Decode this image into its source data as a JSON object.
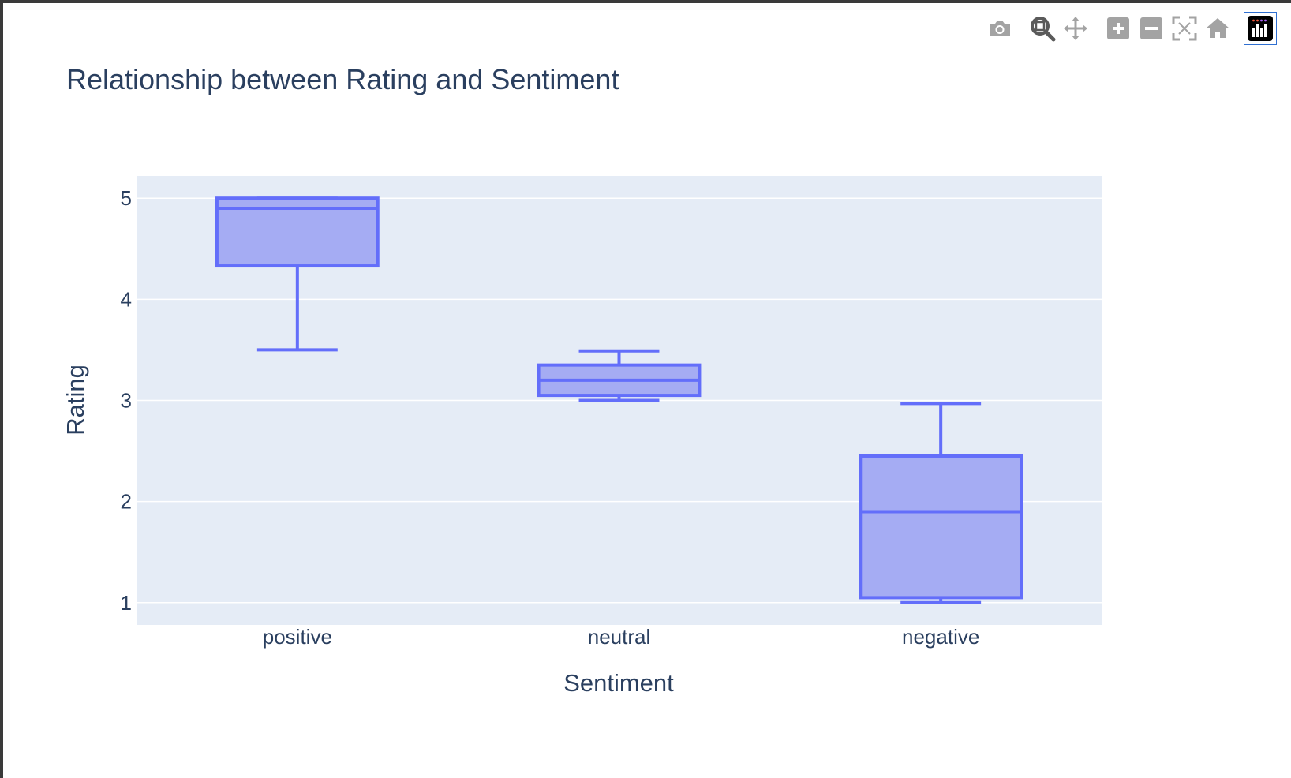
{
  "modebar": {
    "buttons": [
      {
        "name": "camera-icon"
      },
      {
        "name": "zoom-icon"
      },
      {
        "name": "pan-icon"
      },
      {
        "name": "zoom-in-icon"
      },
      {
        "name": "zoom-out-icon"
      },
      {
        "name": "autoscale-icon"
      },
      {
        "name": "home-icon"
      },
      {
        "name": "plotly-logo-icon"
      }
    ],
    "icon_color": "#a3a3a3",
    "active_icon_color": "#5a5a5a"
  },
  "chart_data": {
    "type": "box",
    "title": "Relationship between Rating and Sentiment",
    "xlabel": "Sentiment",
    "ylabel": "Rating",
    "categories": [
      "positive",
      "neutral",
      "negative"
    ],
    "boxes": [
      {
        "category": "positive",
        "min": 3.5,
        "q1": 4.33,
        "median": 4.9,
        "q3": 5.0,
        "max": 5.0
      },
      {
        "category": "neutral",
        "min": 3.0,
        "q1": 3.05,
        "median": 3.2,
        "q3": 3.35,
        "max": 3.49
      },
      {
        "category": "negative",
        "min": 1.0,
        "q1": 1.05,
        "median": 1.9,
        "q3": 2.45,
        "max": 2.97
      }
    ],
    "ylim": [
      0.78,
      5.22
    ],
    "yticks": [
      1,
      2,
      3,
      4,
      5
    ],
    "grid": true,
    "colors": {
      "line": "#636efa",
      "fill": "#a5acf3",
      "plot_bg": "#e5ecf6",
      "grid": "#ffffff",
      "text": "#2a3f5f"
    }
  }
}
